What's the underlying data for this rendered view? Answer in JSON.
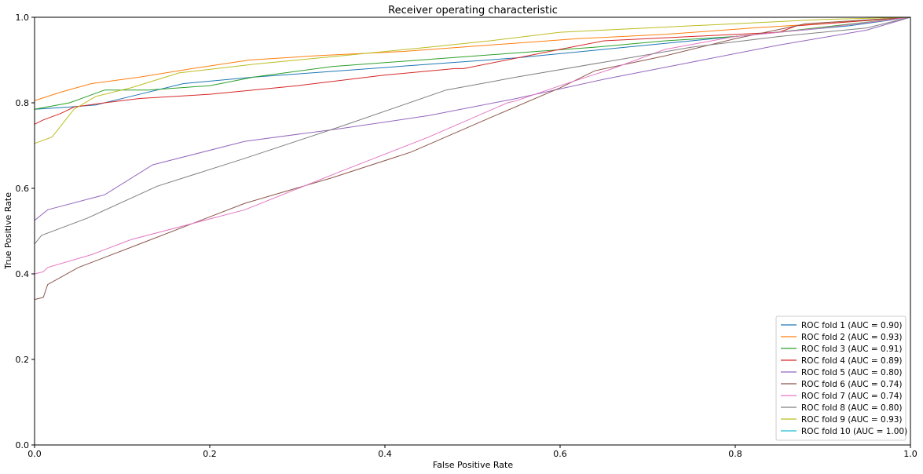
{
  "chart_data": {
    "type": "line",
    "title": "Receiver operating characteristic",
    "xlabel": "False Positive Rate",
    "ylabel": "True Positive Rate",
    "xlim": [
      0,
      1
    ],
    "ylim": [
      0,
      1
    ],
    "xticks": [
      "0.0",
      "0.2",
      "0.4",
      "0.6",
      "0.8",
      "1.0"
    ],
    "yticks": [
      "0.0",
      "0.2",
      "0.4",
      "0.6",
      "0.8",
      "1.0"
    ],
    "grid": false,
    "legend_position": "lower-right",
    "series": [
      {
        "name": "ROC fold 1 (AUC = 0.90)",
        "color": "#1f77b4",
        "x": [
          0,
          0,
          0.04,
          0.07,
          0.11,
          0.17,
          0.25,
          0.35,
          0.45,
          0.55,
          0.65,
          0.75,
          0.85,
          0.93,
          1.0
        ],
        "y": [
          0.78,
          0.785,
          0.79,
          0.795,
          0.815,
          0.845,
          0.86,
          0.875,
          0.89,
          0.905,
          0.925,
          0.945,
          0.965,
          0.98,
          1.0
        ]
      },
      {
        "name": "ROC fold 2 (AUC = 0.93)",
        "color": "#ff7f0e",
        "x": [
          0,
          0,
          0.03,
          0.065,
          0.12,
          0.18,
          0.245,
          0.32,
          0.42,
          0.52,
          0.62,
          0.72,
          0.82,
          0.9,
          1.0
        ],
        "y": [
          0.8,
          0.805,
          0.825,
          0.845,
          0.86,
          0.88,
          0.9,
          0.91,
          0.92,
          0.935,
          0.95,
          0.96,
          0.975,
          0.985,
          1.0
        ]
      },
      {
        "name": "ROC fold 3 (AUC = 0.91)",
        "color": "#2ca02c",
        "x": [
          0,
          0,
          0.04,
          0.08,
          0.13,
          0.2,
          0.25,
          0.34,
          0.44,
          0.54,
          0.64,
          0.72,
          0.8,
          0.87,
          1.0
        ],
        "y": [
          0.78,
          0.785,
          0.8,
          0.83,
          0.83,
          0.84,
          0.86,
          0.885,
          0.9,
          0.915,
          0.93,
          0.945,
          0.955,
          0.97,
          1.0
        ]
      },
      {
        "name": "ROC fold 4 (AUC = 0.89)",
        "color": "#d62728",
        "x": [
          0,
          0,
          0.01,
          0.03,
          0.045,
          0.08,
          0.12,
          0.2,
          0.3,
          0.4,
          0.48,
          0.49,
          0.6,
          0.65,
          0.75,
          0.85,
          0.87,
          1.0
        ],
        "y": [
          0.745,
          0.75,
          0.76,
          0.775,
          0.79,
          0.8,
          0.81,
          0.82,
          0.84,
          0.865,
          0.88,
          0.88,
          0.925,
          0.945,
          0.955,
          0.965,
          0.98,
          1.0
        ]
      },
      {
        "name": "ROC fold 5 (AUC = 0.80)",
        "color": "#9467bd",
        "x": [
          0,
          0,
          0.015,
          0.08,
          0.135,
          0.24,
          0.35,
          0.45,
          0.55,
          0.65,
          0.75,
          0.85,
          0.95,
          1.0
        ],
        "y": [
          0.52,
          0.525,
          0.55,
          0.585,
          0.655,
          0.71,
          0.74,
          0.77,
          0.81,
          0.855,
          0.895,
          0.935,
          0.97,
          1.0
        ]
      },
      {
        "name": "ROC fold 6 (AUC = 0.74)",
        "color": "#8c564b",
        "x": [
          0,
          0,
          0.01,
          0.015,
          0.05,
          0.12,
          0.24,
          0.34,
          0.43,
          0.52,
          0.6,
          0.64,
          0.72,
          0.8,
          0.87,
          0.88,
          1.0
        ],
        "y": [
          0.335,
          0.34,
          0.345,
          0.375,
          0.415,
          0.47,
          0.565,
          0.625,
          0.685,
          0.765,
          0.835,
          0.875,
          0.91,
          0.95,
          0.98,
          0.985,
          1.0
        ]
      },
      {
        "name": "ROC fold 7 (AUC = 0.74)",
        "color": "#e377c2",
        "x": [
          0,
          0,
          0.01,
          0.015,
          0.065,
          0.11,
          0.24,
          0.35,
          0.45,
          0.54,
          0.55,
          0.6,
          0.66,
          0.72,
          0.8,
          0.9,
          1.0
        ],
        "y": [
          0.4,
          0.4,
          0.405,
          0.415,
          0.445,
          0.48,
          0.55,
          0.64,
          0.72,
          0.8,
          0.805,
          0.84,
          0.88,
          0.925,
          0.955,
          0.975,
          1.0
        ]
      },
      {
        "name": "ROC fold 8 (AUC = 0.80)",
        "color": "#7f7f7f",
        "x": [
          0,
          0,
          0.008,
          0.06,
          0.14,
          0.24,
          0.35,
          0.47,
          0.55,
          0.65,
          0.75,
          0.85,
          0.95,
          1.0
        ],
        "y": [
          0.465,
          0.47,
          0.49,
          0.53,
          0.605,
          0.67,
          0.745,
          0.83,
          0.86,
          0.895,
          0.93,
          0.955,
          0.975,
          1.0
        ]
      },
      {
        "name": "ROC fold 9 (AUC = 0.93)",
        "color": "#bcbd22",
        "x": [
          0,
          0,
          0.02,
          0.045,
          0.07,
          0.11,
          0.165,
          0.25,
          0.35,
          0.45,
          0.52,
          0.6,
          0.7,
          0.8,
          0.9,
          1.0
        ],
        "y": [
          0.705,
          0.705,
          0.72,
          0.785,
          0.815,
          0.835,
          0.87,
          0.89,
          0.91,
          0.93,
          0.945,
          0.965,
          0.975,
          0.985,
          0.995,
          1.0
        ]
      },
      {
        "name": "ROC fold 10 (AUC = 1.00)",
        "color": "#17becf",
        "x": [
          0,
          0,
          1
        ],
        "y": [
          0,
          1,
          1
        ]
      }
    ]
  }
}
